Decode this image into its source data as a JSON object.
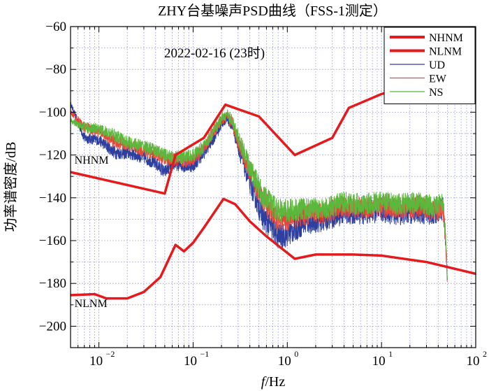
{
  "chart_data": {
    "type": "line",
    "title": "ZHY台基噪声PSD曲线（FSS-1测定）",
    "annotation": "2022-02-16 (23时)",
    "xlabel": "f/Hz",
    "xlabel_italic": "f",
    "xlabel_unit": "/Hz",
    "ylabel": "功率谱密度/dB",
    "xscale": "log",
    "xlim": [
      0.005,
      100
    ],
    "ylim": [
      -210,
      -60
    ],
    "grid": true,
    "legend_position": "top-right",
    "x_ticks": [
      {
        "value": 0.01,
        "base": "10",
        "exp": "−2"
      },
      {
        "value": 0.1,
        "base": "10",
        "exp": "−1"
      },
      {
        "value": 1,
        "base": "10",
        "exp": "0"
      },
      {
        "value": 10,
        "base": "10",
        "exp": "1"
      },
      {
        "value": 100,
        "base": "10",
        "exp": "2"
      }
    ],
    "y_ticks": [
      {
        "value": -60,
        "label": "−60"
      },
      {
        "value": -80,
        "label": "−80"
      },
      {
        "value": -100,
        "label": "−100"
      },
      {
        "value": -120,
        "label": "−120"
      },
      {
        "value": -140,
        "label": "−140"
      },
      {
        "value": -160,
        "label": "−160"
      },
      {
        "value": -180,
        "label": "−180"
      },
      {
        "value": -200,
        "label": "−200"
      }
    ],
    "curve_labels": [
      {
        "text": "NHNM",
        "x": 0.0055,
        "y": -124
      },
      {
        "text": "NLNM",
        "x": 0.0055,
        "y": -191
      }
    ],
    "series": [
      {
        "name": "NHNM",
        "color": "#e41a1c",
        "width": 3.5,
        "style": "model",
        "x": [
          0.005,
          0.05,
          0.065,
          0.13,
          0.22,
          0.5,
          1.2,
          3.0,
          4.5,
          10,
          20
        ],
        "y": [
          -128,
          -138,
          -120,
          -112,
          -96.5,
          -102,
          -120,
          -112,
          -98,
          -91.5,
          -88
        ]
      },
      {
        "name": "NLNM",
        "color": "#e41a1c",
        "width": 3.5,
        "style": "model",
        "x": [
          0.005,
          0.009,
          0.012,
          0.02,
          0.03,
          0.045,
          0.065,
          0.08,
          0.1,
          0.13,
          0.21,
          0.28,
          0.4,
          0.6,
          1.2,
          2.0,
          5.0,
          10,
          30,
          100
        ],
        "y": [
          -185.5,
          -185,
          -187,
          -187,
          -184,
          -177,
          -162,
          -165,
          -161,
          -154,
          -140.5,
          -143,
          -151,
          -158,
          -168.5,
          -166.5,
          -166.5,
          -167,
          -170,
          -175.5
        ]
      },
      {
        "name": "UD",
        "color": "#2f3f9e",
        "width": 1.0,
        "style": "noise",
        "x": [
          0.005,
          0.007,
          0.01,
          0.015,
          0.02,
          0.03,
          0.04,
          0.05,
          0.06,
          0.08,
          0.1,
          0.13,
          0.17,
          0.21,
          0.23,
          0.26,
          0.32,
          0.4,
          0.55,
          0.8,
          1.0,
          1.5,
          2.5,
          4,
          6,
          10,
          15,
          25,
          35,
          45,
          48,
          50
        ],
        "y": [
          -96,
          -112,
          -113,
          -119,
          -119,
          -121,
          -124,
          -128,
          -124,
          -125,
          -125,
          -119,
          -111,
          -104,
          -103,
          -106,
          -120,
          -133,
          -149,
          -158,
          -157,
          -152,
          -150,
          -147,
          -147,
          -146,
          -147,
          -146,
          -147,
          -145,
          -160,
          -179
        ],
        "amp": [
          1,
          2.5,
          2.5,
          3,
          3,
          3,
          3,
          3,
          3,
          3,
          3,
          3,
          3,
          2.5,
          2.5,
          3,
          4,
          5,
          6,
          6,
          6,
          5.5,
          5.5,
          5.5,
          5.5,
          5.5,
          6,
          6,
          6,
          6,
          4,
          2
        ]
      },
      {
        "name": "EW",
        "color": "#e8463a",
        "width": 1.0,
        "style": "noise",
        "x": [
          0.005,
          0.007,
          0.01,
          0.015,
          0.02,
          0.03,
          0.04,
          0.05,
          0.06,
          0.08,
          0.1,
          0.13,
          0.17,
          0.21,
          0.23,
          0.26,
          0.32,
          0.4,
          0.55,
          0.8,
          1.0,
          1.5,
          2.5,
          4,
          6,
          10,
          15,
          25,
          35,
          45,
          48,
          50
        ],
        "y": [
          -100,
          -107,
          -109,
          -114,
          -115,
          -118,
          -119,
          -122,
          -122,
          -123,
          -122,
          -117,
          -108,
          -103,
          -102,
          -105,
          -117,
          -128,
          -141,
          -150,
          -150,
          -148,
          -147,
          -144,
          -145,
          -144,
          -145,
          -144,
          -146,
          -145,
          -160,
          -179
        ],
        "amp": [
          1,
          2.5,
          2.5,
          3,
          3,
          3,
          3,
          3,
          3,
          3,
          3,
          3,
          3,
          2.5,
          2.5,
          3,
          4,
          5,
          5.5,
          5.5,
          5.5,
          5,
          5,
          5,
          5,
          5,
          5,
          5,
          5,
          5,
          4,
          2
        ]
      },
      {
        "name": "NS",
        "color": "#5cb83c",
        "width": 1.0,
        "style": "noise",
        "x": [
          0.005,
          0.007,
          0.01,
          0.015,
          0.02,
          0.03,
          0.04,
          0.05,
          0.06,
          0.08,
          0.1,
          0.13,
          0.17,
          0.21,
          0.23,
          0.26,
          0.32,
          0.4,
          0.55,
          0.8,
          1.0,
          1.5,
          2.5,
          4,
          6,
          10,
          15,
          25,
          35,
          45,
          48,
          50
        ],
        "y": [
          -104,
          -107,
          -108,
          -111,
          -114,
          -116,
          -118,
          -120,
          -121,
          -121,
          -120,
          -116,
          -108,
          -102,
          -101,
          -104,
          -115,
          -126,
          -139,
          -146,
          -146,
          -145,
          -145,
          -142,
          -143,
          -142,
          -143,
          -142,
          -144,
          -143,
          -158,
          -178
        ],
        "amp": [
          1,
          2.5,
          2.5,
          3,
          3,
          3,
          3,
          3,
          3,
          3,
          3,
          3,
          3,
          2.5,
          2.5,
          3,
          4,
          5,
          5.5,
          5.5,
          5.5,
          5,
          5,
          5,
          5,
          5,
          5,
          5,
          5,
          5,
          4,
          2
        ]
      }
    ]
  }
}
